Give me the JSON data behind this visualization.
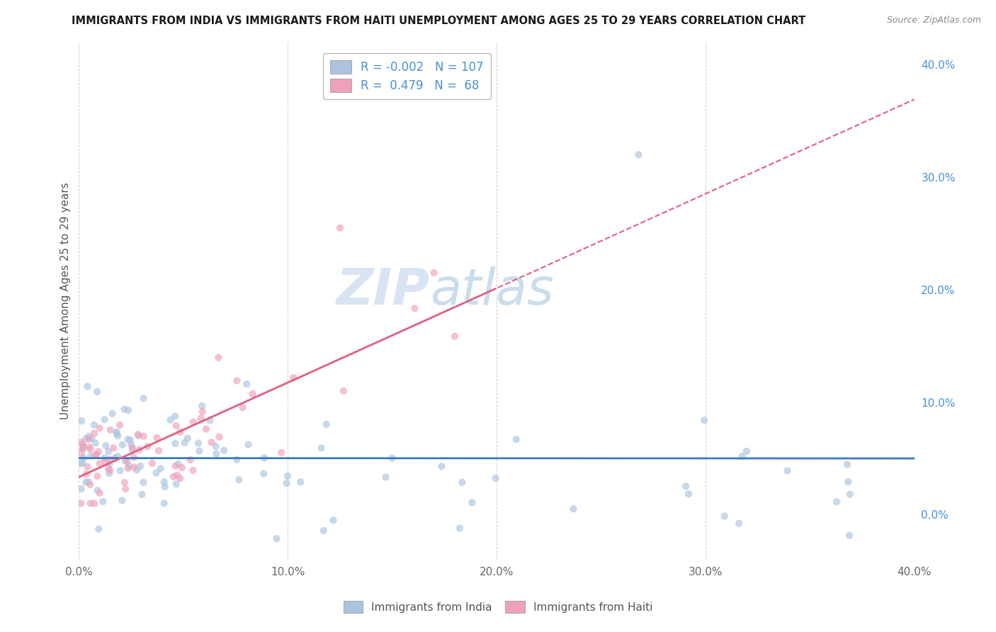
{
  "title": "IMMIGRANTS FROM INDIA VS IMMIGRANTS FROM HAITI UNEMPLOYMENT AMONG AGES 25 TO 29 YEARS CORRELATION CHART",
  "source": "Source: ZipAtlas.com",
  "ylabel": "Unemployment Among Ages 25 to 29 years",
  "xlim": [
    0.0,
    0.4
  ],
  "ylim": [
    -0.04,
    0.42
  ],
  "india_color": "#aac4e0",
  "haiti_color": "#f0a0b8",
  "india_line_color": "#3a7abf",
  "haiti_line_color": "#e06080",
  "india_R": -0.002,
  "india_N": 107,
  "haiti_R": 0.479,
  "haiti_N": 68,
  "watermark_zip": "ZIP",
  "watermark_atlas": "atlas",
  "right_yticks": [
    0.0,
    0.1,
    0.2,
    0.3,
    0.4
  ],
  "right_yticklabels": [
    "0.0%",
    "10.0%",
    "20.0%",
    "30.0%",
    "40.0%"
  ],
  "xticks": [
    0.0,
    0.1,
    0.2,
    0.3,
    0.4
  ],
  "xticklabels": [
    "0.0%",
    "10.0%",
    "20.0%",
    "30.0%",
    "40.0%"
  ],
  "grid_color": "#cccccc",
  "background_color": "#ffffff",
  "scatter_size": 55,
  "scatter_alpha": 0.65
}
